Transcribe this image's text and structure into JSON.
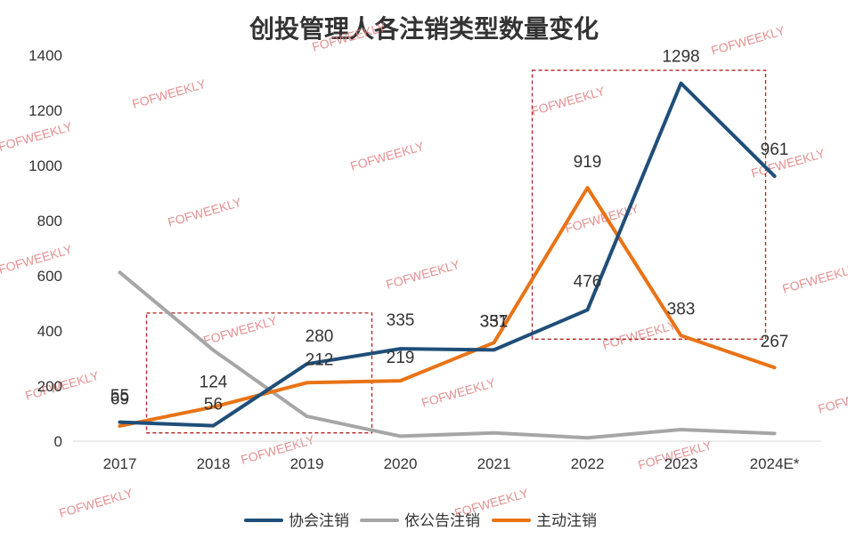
{
  "chart_data": {
    "type": "line",
    "title": "创投管理人各注销类型数量变化",
    "categories": [
      "2017",
      "2018",
      "2019",
      "2020",
      "2021",
      "2022",
      "2023",
      "2024E*"
    ],
    "ylim": [
      0,
      1400
    ],
    "yticks": [
      0,
      200,
      400,
      600,
      800,
      1000,
      1200,
      1400
    ],
    "grid": false,
    "legend_position": "bottom",
    "series": [
      {
        "name": "协会注销",
        "color": "#1f4e79",
        "values": [
          69,
          56,
          280,
          335,
          331,
          476,
          1298,
          961
        ],
        "labels": [
          "69",
          "56",
          "280",
          "335",
          "331",
          "476",
          "1298",
          "961"
        ]
      },
      {
        "name": "依公告注销",
        "color": "#a6a6a6",
        "values": [
          612,
          330,
          90,
          18,
          30,
          12,
          42,
          28
        ],
        "labels": [
          "",
          "",
          "",
          "",
          "",
          "",
          "",
          ""
        ]
      },
      {
        "name": "主动注销",
        "color": "#e97316",
        "values": [
          55,
          124,
          212,
          219,
          357,
          919,
          383,
          267
        ],
        "labels": [
          "55",
          "124",
          "212",
          "219",
          "357",
          "919",
          "383",
          "267"
        ]
      }
    ],
    "annotations": [
      "highlight-box-2018-2019",
      "highlight-box-2022-2023"
    ]
  },
  "watermark": "FOFWEEKLY"
}
